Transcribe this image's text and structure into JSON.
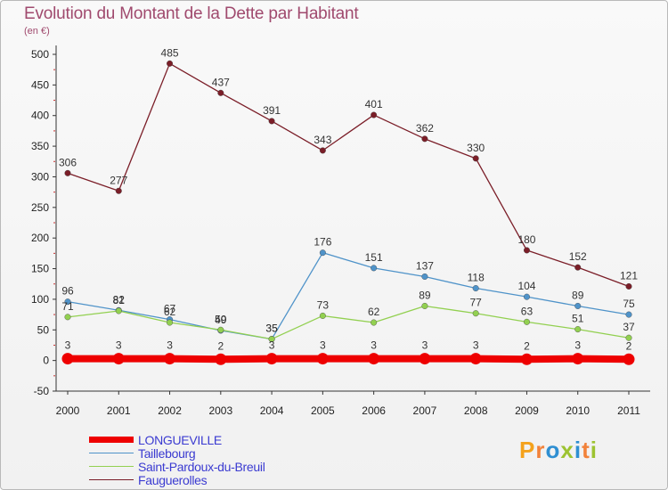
{
  "header": {
    "title": "Evolution du Montant de la Dette par Habitant",
    "subtitle": "(en €)"
  },
  "brand": {
    "letters": [
      "P",
      "r",
      "o",
      "x",
      "i",
      "t",
      "i"
    ],
    "colors": [
      "#f4a21c",
      "#f2823a",
      "#2f8fd2",
      "#9dc331",
      "#2f8fd2",
      "#f2823a",
      "#9dc331"
    ]
  },
  "chart_data": {
    "type": "line",
    "title": "Evolution du Montant de la Dette par Habitant",
    "ylabel": "(en €)",
    "xlabel": "",
    "x": [
      "2000",
      "2001",
      "2002",
      "2003",
      "2004",
      "2005",
      "2006",
      "2007",
      "2008",
      "2009",
      "2010",
      "2011"
    ],
    "ylim": [
      -50,
      500
    ],
    "yticks": [
      "-50",
      "0",
      "50",
      "100",
      "150",
      "200",
      "250",
      "300",
      "350",
      "400",
      "450",
      "500"
    ],
    "grid": false,
    "legend": "bottom-left",
    "series": [
      {
        "name": "Faugueroll​es",
        "color": "#7b1e28",
        "values": [
          306,
          277,
          485,
          437,
          391,
          343,
          401,
          362,
          330,
          180,
          152,
          121
        ],
        "labels": [
          "306",
          "277",
          "485",
          "437",
          "391",
          "343",
          "401",
          "362",
          "330",
          "180",
          "152",
          "121"
        ]
      },
      {
        "name": "Taillebourg",
        "color": "#4f93c9",
        "values": [
          96,
          82,
          67,
          49,
          35,
          176,
          151,
          137,
          118,
          104,
          89,
          75
        ],
        "labels": [
          "96",
          "82",
          "67",
          "49",
          "35",
          "176",
          "151",
          "137",
          "118",
          "104",
          "89",
          "75"
        ]
      },
      {
        "name": "Saint-Pardoux-du-Breuil",
        "color": "#92d050",
        "values": [
          71,
          81,
          62,
          50,
          35,
          73,
          62,
          89,
          77,
          63,
          51,
          37
        ],
        "labels": [
          "71",
          "81",
          "62",
          "50",
          "35",
          "73",
          "62",
          "89",
          "77",
          "63",
          "51",
          "37"
        ]
      },
      {
        "name": "LONGUEVILLE",
        "color": "#ee0000",
        "values": [
          3,
          3,
          3,
          2,
          3,
          3,
          3,
          3,
          3,
          2,
          3,
          2
        ],
        "labels": [
          "3",
          "3",
          "3",
          "2",
          "3",
          "3",
          "3",
          "3",
          "3",
          "2",
          "3",
          "2"
        ]
      }
    ]
  }
}
